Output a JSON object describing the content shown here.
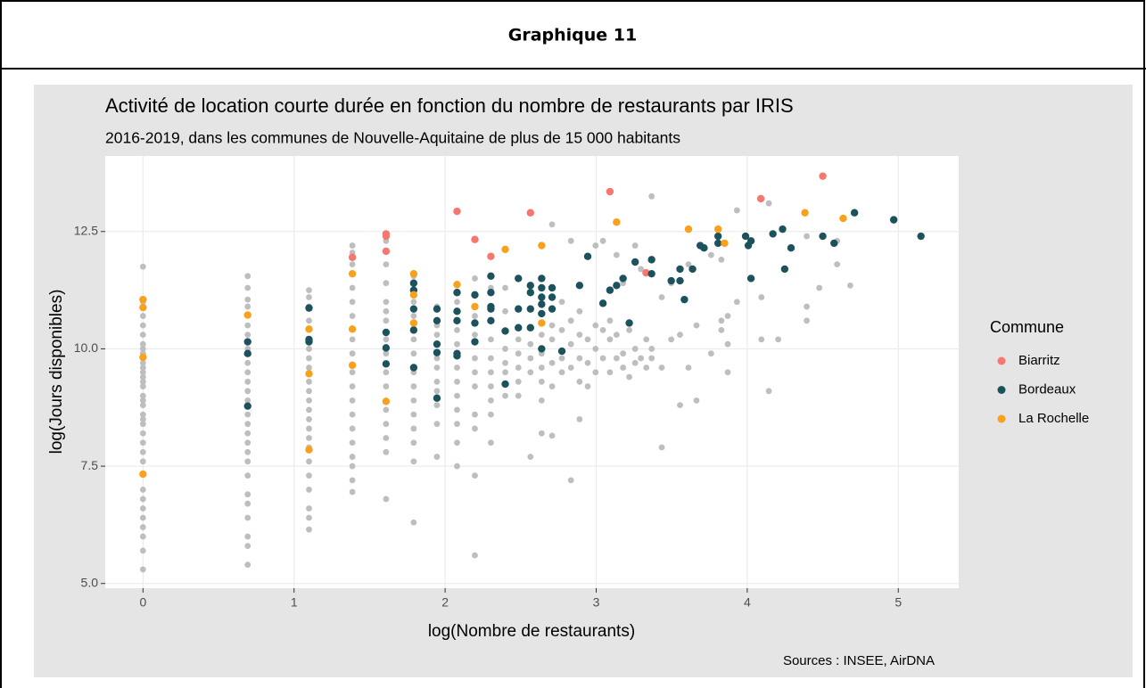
{
  "header": {
    "title": "Graphique 11"
  },
  "chart_data": {
    "type": "scatter",
    "title": "Activité de location courte durée en fonction du nombre de restaurants par IRIS",
    "subtitle": "2016-2019, dans les communes de Nouvelle-Aquitaine de plus de 15 000 habitants",
    "x_label": "log(Nombre de restaurants)",
    "y_label": "log(Jours disponibles)",
    "legend_title": "Commune",
    "caption": "Sources : INSEE, AirDNA",
    "legend": "right",
    "grid": true,
    "xlim": [
      -0.25,
      5.4
    ],
    "ylim": [
      4.9,
      14.11
    ],
    "xticks": [
      0,
      1,
      2,
      3,
      4,
      5
    ],
    "yticks": [
      {
        "value": 5,
        "label": "5.0"
      },
      7.5,
      {
        "value": 10,
        "label": "10.0"
      },
      12.5
    ],
    "series": [
      {
        "color": "#bebebe",
        "x": [
          0,
          0,
          0,
          0,
          0,
          0,
          0,
          0,
          0,
          0,
          0,
          0,
          0,
          0,
          0,
          0,
          0,
          0,
          0,
          0,
          0,
          0,
          0,
          0,
          0,
          0,
          0,
          0,
          0,
          0,
          0,
          0,
          0.693,
          0.693,
          0.693,
          0.693,
          0.693,
          0.693,
          0.693,
          0.693,
          0.693,
          0.693,
          0.693,
          0.693,
          0.693,
          0.693,
          0.693,
          0.693,
          0.693,
          0.693,
          0.693,
          0.693,
          0.693,
          0.693,
          0.693,
          0.693,
          0.693,
          1.099,
          1.099,
          1.099,
          1.099,
          1.099,
          1.099,
          1.099,
          1.099,
          1.099,
          1.099,
          1.099,
          1.099,
          1.099,
          1.099,
          1.099,
          1.099,
          1.099,
          1.099,
          1.099,
          1.099,
          1.099,
          1.386,
          1.386,
          1.386,
          1.386,
          1.386,
          1.386,
          1.386,
          1.386,
          1.386,
          1.386,
          1.386,
          1.386,
          1.386,
          1.386,
          1.386,
          1.386,
          1.386,
          1.386,
          1.609,
          1.609,
          1.609,
          1.609,
          1.609,
          1.609,
          1.609,
          1.609,
          1.609,
          1.609,
          1.609,
          1.609,
          1.609,
          1.609,
          1.609,
          1.609,
          1.792,
          1.792,
          1.792,
          1.792,
          1.792,
          1.792,
          1.792,
          1.792,
          1.792,
          1.792,
          1.792,
          1.792,
          1.792,
          1.946,
          1.946,
          1.946,
          1.946,
          1.946,
          1.946,
          1.946,
          1.946,
          1.946,
          1.946,
          2.079,
          2.079,
          2.079,
          2.079,
          2.079,
          2.079,
          2.079,
          2.079,
          2.079,
          2.079,
          2.197,
          2.197,
          2.197,
          2.197,
          2.197,
          2.197,
          2.197,
          2.197,
          2.197,
          2.197,
          2.303,
          2.303,
          2.303,
          2.303,
          2.303,
          2.303,
          2.303,
          2.303,
          2.398,
          2.398,
          2.398,
          2.398,
          2.398,
          2.398,
          2.485,
          2.485,
          2.485,
          2.485,
          2.485,
          2.565,
          2.565,
          2.565,
          2.565,
          2.639,
          2.639,
          2.639,
          2.639,
          2.639,
          2.639,
          2.708,
          2.708,
          2.708,
          2.708,
          2.708,
          2.708,
          2.773,
          2.773,
          2.773,
          2.773,
          2.833,
          2.833,
          2.833,
          2.833,
          2.833,
          2.89,
          2.89,
          2.89,
          2.89,
          2.89,
          2.944,
          2.944,
          2.944,
          2.996,
          2.996,
          2.996,
          2.996,
          3.045,
          3.045,
          3.045,
          3.091,
          3.091,
          3.091,
          3.135,
          3.135,
          3.135,
          3.178,
          3.178,
          3.178,
          3.219,
          3.219,
          3.258,
          3.258,
          3.258,
          3.296,
          3.296,
          3.332,
          3.332,
          3.367,
          3.367,
          3.367,
          3.434,
          3.434,
          3.434,
          3.497,
          3.497,
          3.555,
          3.555,
          3.611,
          3.611,
          3.664,
          3.664,
          3.761,
          3.761,
          3.829,
          3.829,
          3.829,
          3.871,
          3.871,
          3.871,
          3.932,
          3.932,
          4.094,
          4.094,
          4.143,
          4.143,
          4.205,
          4.394,
          4.394,
          4.394,
          4.477,
          4.595,
          4.595,
          4.682
        ],
        "values": [
          11.75,
          11.0,
          10.7,
          10.5,
          10.3,
          10.1,
          10.0,
          9.9,
          9.7,
          9.6,
          9.5,
          9.4,
          9.3,
          9.2,
          9.0,
          8.9,
          8.8,
          8.6,
          8.5,
          8.4,
          8.2,
          8.0,
          7.8,
          7.6,
          7.0,
          6.8,
          6.6,
          6.4,
          6.2,
          6.0,
          5.7,
          5.3,
          11.55,
          11.3,
          11.05,
          10.9,
          10.5,
          10.3,
          10.0,
          9.7,
          9.5,
          9.3,
          9.1,
          8.9,
          8.6,
          8.4,
          8.2,
          8.0,
          7.8,
          7.6,
          7.3,
          6.9,
          6.7,
          6.4,
          6.0,
          5.8,
          5.4,
          11.25,
          11.1,
          10.9,
          10.6,
          10.0,
          9.8,
          9.6,
          9.3,
          9.1,
          8.9,
          8.7,
          8.5,
          8.3,
          8.1,
          7.9,
          7.6,
          7.3,
          7.0,
          6.6,
          6.4,
          6.15,
          12.2,
          12.05,
          11.8,
          11.3,
          11.0,
          10.7,
          10.2,
          9.9,
          9.5,
          9.2,
          8.9,
          8.6,
          8.3,
          8.0,
          7.7,
          7.5,
          7.2,
          6.95,
          12.3,
          11.8,
          11.4,
          11.0,
          10.8,
          10.6,
          10.2,
          9.9,
          9.5,
          9.2,
          8.9,
          8.7,
          8.4,
          8.1,
          7.8,
          6.8,
          11.55,
          11.0,
          10.7,
          10.2,
          9.9,
          9.5,
          9.2,
          8.9,
          8.6,
          8.3,
          8.0,
          7.6,
          6.3,
          10.9,
          10.5,
          10.3,
          9.8,
          9.6,
          9.3,
          9.1,
          8.8,
          8.4,
          7.7,
          11.0,
          10.4,
          10.1,
          9.6,
          9.3,
          9.0,
          8.7,
          8.4,
          8.0,
          7.5,
          11.5,
          10.7,
          10.3,
          9.8,
          9.5,
          9.2,
          8.6,
          8.3,
          7.3,
          5.6,
          11.3,
          10.2,
          9.8,
          9.5,
          9.2,
          8.9,
          8.6,
          8.0,
          11.3,
          10.8,
          10.0,
          9.7,
          9.5,
          9.0,
          10.2,
          9.9,
          9.6,
          9.3,
          9.0,
          10.1,
          9.8,
          9.5,
          7.7,
          10.3,
          9.9,
          9.6,
          9.3,
          8.9,
          8.2,
          12.65,
          10.5,
          10.2,
          9.7,
          9.2,
          8.15,
          11.0,
          10.4,
          9.8,
          9.5,
          12.3,
          10.6,
          10.1,
          9.6,
          7.2,
          10.8,
          10.3,
          9.8,
          9.3,
          8.5,
          10.2,
          9.7,
          9.2,
          12.2,
          10.5,
          10.0,
          9.5,
          12.3,
          10.4,
          9.8,
          10.6,
          10.2,
          9.5,
          12.0,
          10.3,
          9.8,
          11.4,
          9.9,
          9.6,
          10.4,
          9.4,
          12.2,
          10.0,
          9.7,
          11.7,
          9.8,
          10.2,
          9.6,
          13.25,
          10.0,
          9.8,
          11.1,
          9.6,
          7.9,
          11.4,
          10.2,
          8.8,
          10.3,
          9.6,
          11.8,
          10.5,
          8.9,
          9.9,
          12.0,
          10.6,
          10.4,
          11.9,
          10.1,
          10.7,
          9.5,
          12.95,
          11.0,
          11.1,
          10.2,
          13.1,
          9.1,
          10.2,
          12.4,
          10.9,
          10.6,
          11.3,
          11.8,
          12.3,
          11.35
        ]
      },
      {
        "name": "Biarritz",
        "color": "#f8766d",
        "x": [
          1.386,
          1.609,
          1.609,
          1.609,
          2.079,
          2.197,
          2.303,
          2.565,
          3.091,
          3.33,
          4.09,
          4.5
        ],
        "values": [
          11.95,
          12.45,
          12.4,
          12.08,
          12.93,
          12.33,
          11.97,
          12.9,
          13.35,
          11.62,
          13.2,
          13.68
        ]
      },
      {
        "name": "Bordeaux",
        "color": "#1b525c",
        "x": [
          0.693,
          0.693,
          0.693,
          1.099,
          1.099,
          1.099,
          1.609,
          1.609,
          1.609,
          1.792,
          1.792,
          1.792,
          1.792,
          1.792,
          1.946,
          1.946,
          1.946,
          1.946,
          1.946,
          2.079,
          2.079,
          2.079,
          2.079,
          2.079,
          2.197,
          2.197,
          2.197,
          2.303,
          2.303,
          2.303,
          2.303,
          2.303,
          2.398,
          2.398,
          2.485,
          2.485,
          2.485,
          2.565,
          2.565,
          2.565,
          2.565,
          2.639,
          2.639,
          2.639,
          2.639,
          2.639,
          2.639,
          2.708,
          2.708,
          2.708,
          2.773,
          2.89,
          2.944,
          3.045,
          3.091,
          3.135,
          3.178,
          3.219,
          3.258,
          3.367,
          3.367,
          3.497,
          3.555,
          3.555,
          3.584,
          3.638,
          3.689,
          3.714,
          3.807,
          3.807,
          3.989,
          4.007,
          4.025,
          4.025,
          4.17,
          4.234,
          4.248,
          4.29,
          4.5,
          4.575,
          4.71,
          4.97,
          5.15
        ],
        "values": [
          10.15,
          9.9,
          8.78,
          10.87,
          10.2,
          10.15,
          10.35,
          10.02,
          9.68,
          11.4,
          11.25,
          10.85,
          10.4,
          9.6,
          10.85,
          10.6,
          10.1,
          9.92,
          8.95,
          11.2,
          10.8,
          10.6,
          9.9,
          9.85,
          11.15,
          10.55,
          10.15,
          11.55,
          11.2,
          10.9,
          10.85,
          10.6,
          10.38,
          9.25,
          11.5,
          10.85,
          10.45,
          11.35,
          11.2,
          10.85,
          10.45,
          11.5,
          11.3,
          11.1,
          10.95,
          10.75,
          10.0,
          11.3,
          11.1,
          10.85,
          9.95,
          11.35,
          11.97,
          10.97,
          11.25,
          11.35,
          11.5,
          10.55,
          11.85,
          11.9,
          11.6,
          11.45,
          11.7,
          11.45,
          11.05,
          11.7,
          12.2,
          12.15,
          12.4,
          12.25,
          12.4,
          12.2,
          12.3,
          11.5,
          12.45,
          12.55,
          11.7,
          12.15,
          12.4,
          12.25,
          12.9,
          12.75,
          12.4
        ]
      },
      {
        "name": "La Rochelle",
        "color": "#f9a11b",
        "x": [
          0,
          0,
          0,
          0,
          0.693,
          1.099,
          1.099,
          1.099,
          1.386,
          1.386,
          1.386,
          1.609,
          1.792,
          1.792,
          1.792,
          2.079,
          2.197,
          2.398,
          2.639,
          2.639,
          3.135,
          3.611,
          3.807,
          3.85,
          4.382,
          4.635
        ],
        "values": [
          11.05,
          10.88,
          9.82,
          7.33,
          10.72,
          10.42,
          9.47,
          7.85,
          11.6,
          10.42,
          9.65,
          8.88,
          11.6,
          11.15,
          10.55,
          11.37,
          10.9,
          12.12,
          12.2,
          10.55,
          12.7,
          12.55,
          12.55,
          12.25,
          12.9,
          12.78
        ]
      }
    ]
  }
}
